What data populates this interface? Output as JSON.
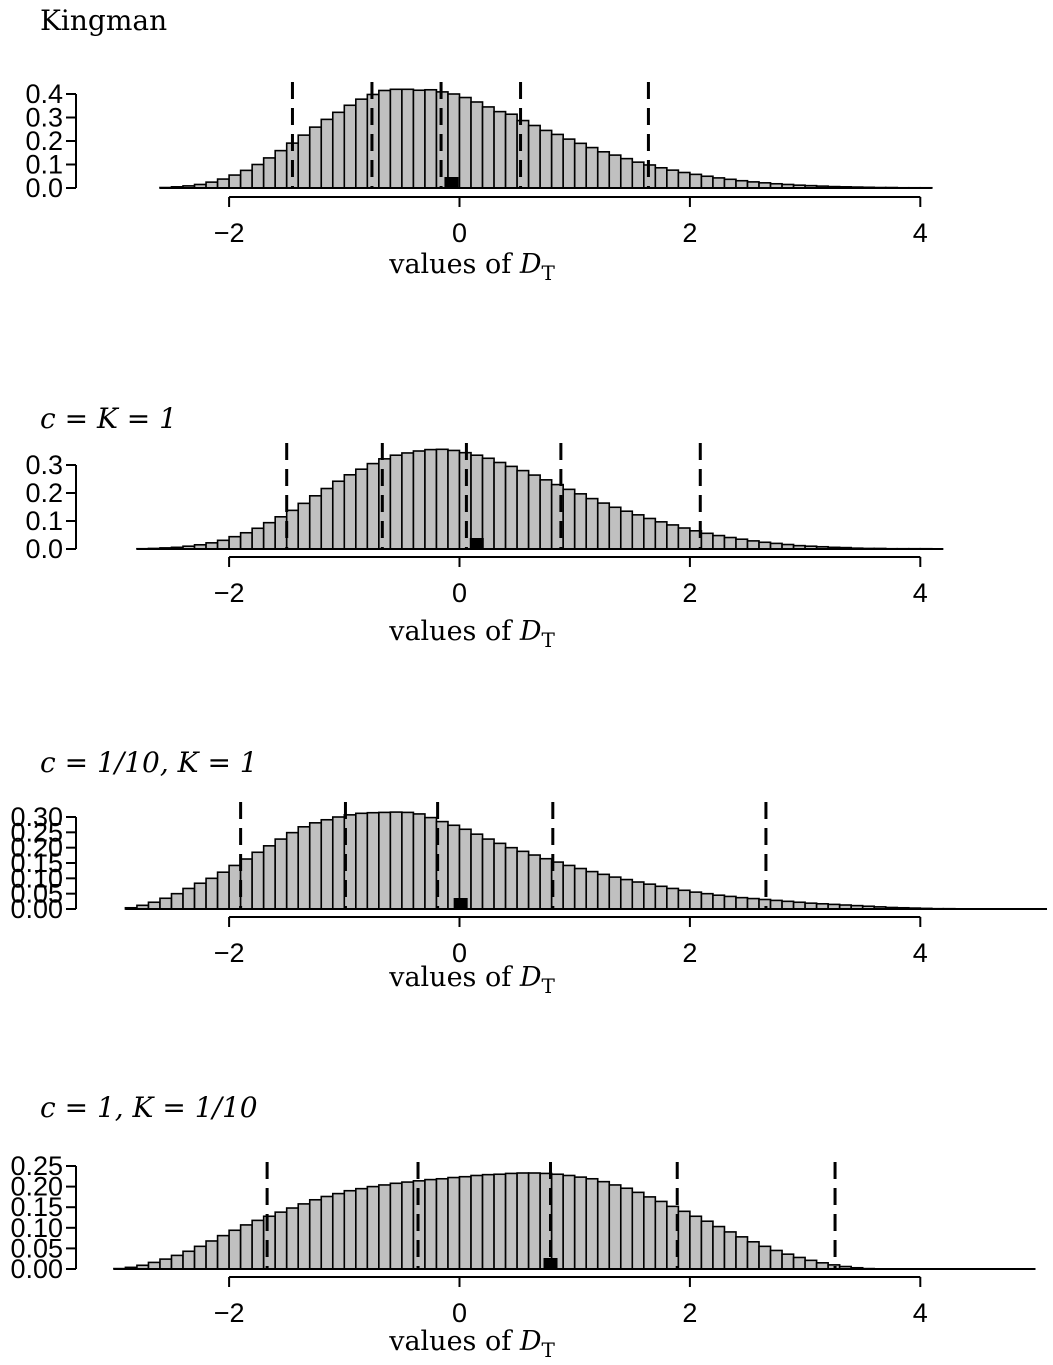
{
  "chart_data": [
    {
      "type": "bar",
      "title": "Kingman",
      "title_text": "Kingman",
      "title_math": "",
      "xlabel": "values of D_T",
      "xlabel_text": "values of ",
      "xlabel_var": "D",
      "xlabel_sub": "T",
      "xlim": [
        -2.75,
        4.31
      ],
      "ylim": [
        0,
        0.4
      ],
      "xticks": [
        -2,
        0,
        2,
        4
      ],
      "yticks": [
        "0.0",
        "0.1",
        "0.2",
        "0.3",
        "0.4"
      ],
      "bin_start": -2.6,
      "bin_width": 0.1,
      "values": [
        0.002,
        0.005,
        0.009,
        0.015,
        0.025,
        0.038,
        0.055,
        0.075,
        0.1,
        0.128,
        0.159,
        0.191,
        0.225,
        0.259,
        0.292,
        0.322,
        0.352,
        0.378,
        0.398,
        0.415,
        0.42,
        0.42,
        0.416,
        0.418,
        0.409,
        0.4,
        0.385,
        0.366,
        0.345,
        0.325,
        0.314,
        0.287,
        0.266,
        0.245,
        0.228,
        0.208,
        0.19,
        0.172,
        0.154,
        0.14,
        0.125,
        0.11,
        0.098,
        0.086,
        0.076,
        0.066,
        0.058,
        0.05,
        0.043,
        0.037,
        0.031,
        0.026,
        0.022,
        0.018,
        0.015,
        0.012,
        0.01,
        0.008,
        0.006,
        0.005,
        0.004,
        0.003,
        0.002,
        0.002,
        0.001,
        0.001,
        0.001
      ],
      "quantiles": [
        -1.45,
        -0.76,
        -0.16,
        0.53,
        1.64
      ],
      "marker_x": -0.07
    },
    {
      "type": "bar",
      "title": "c = K = 1",
      "title_text": "",
      "title_math": "c = K = 1",
      "xlabel": "values of D_T",
      "xlabel_text": "values of ",
      "xlabel_var": "D",
      "xlabel_sub": "T",
      "xlim": [
        -2.75,
        4.31
      ],
      "ylim": [
        0,
        0.3
      ],
      "xticks": [
        -2,
        0,
        2,
        4
      ],
      "yticks": [
        "0.0",
        "0.1",
        "0.2",
        "0.3"
      ],
      "bin_start": -2.8,
      "bin_width": 0.1,
      "values": [
        0.001,
        0.002,
        0.004,
        0.006,
        0.01,
        0.015,
        0.022,
        0.031,
        0.044,
        0.058,
        0.074,
        0.094,
        0.115,
        0.138,
        0.163,
        0.19,
        0.216,
        0.242,
        0.265,
        0.285,
        0.305,
        0.322,
        0.335,
        0.343,
        0.35,
        0.355,
        0.356,
        0.352,
        0.344,
        0.335,
        0.324,
        0.309,
        0.295,
        0.28,
        0.264,
        0.247,
        0.23,
        0.213,
        0.197,
        0.18,
        0.164,
        0.149,
        0.135,
        0.122,
        0.109,
        0.097,
        0.086,
        0.075,
        0.065,
        0.056,
        0.048,
        0.041,
        0.035,
        0.029,
        0.024,
        0.02,
        0.016,
        0.012,
        0.01,
        0.008,
        0.006,
        0.005,
        0.003,
        0.002,
        0.002,
        0.001,
        0.001,
        0.001,
        0.001,
        0.0
      ],
      "quantiles": [
        -1.5,
        -0.67,
        0.06,
        0.88,
        2.09
      ],
      "marker_x": 0.15
    },
    {
      "type": "bar",
      "title": "c = 1/10, K = 1",
      "title_text": "",
      "title_math": "c = 1/10, K = 1",
      "xlabel": "values of D_T",
      "xlabel_text": "values of ",
      "xlabel_var": "D",
      "xlabel_sub": "T",
      "xlim": [
        -2.75,
        4.31
      ],
      "ylim": [
        0,
        0.3
      ],
      "xticks": [
        -2,
        0,
        2,
        4
      ],
      "yticks": [
        "0.00",
        "0.05",
        "0.10",
        "0.15",
        "0.20",
        "0.25",
        "0.30"
      ],
      "bin_start": -2.9,
      "bin_width": 0.1,
      "values": [
        0.004,
        0.012,
        0.022,
        0.035,
        0.05,
        0.067,
        0.084,
        0.1,
        0.12,
        0.142,
        0.163,
        0.185,
        0.206,
        0.228,
        0.249,
        0.268,
        0.281,
        0.291,
        0.3,
        0.307,
        0.312,
        0.314,
        0.315,
        0.316,
        0.315,
        0.31,
        0.298,
        0.285,
        0.273,
        0.26,
        0.244,
        0.228,
        0.214,
        0.2,
        0.188,
        0.176,
        0.164,
        0.153,
        0.142,
        0.132,
        0.122,
        0.113,
        0.104,
        0.096,
        0.088,
        0.081,
        0.074,
        0.067,
        0.061,
        0.055,
        0.05,
        0.045,
        0.041,
        0.037,
        0.034,
        0.031,
        0.028,
        0.025,
        0.022,
        0.019,
        0.017,
        0.015,
        0.013,
        0.011,
        0.009,
        0.007,
        0.005,
        0.004,
        0.003,
        0.002,
        0.001,
        0.001,
        0.0,
        0.0,
        0.0,
        0.0,
        0.0,
        0.0,
        0.0,
        0.0
      ],
      "quantiles": [
        -1.9,
        -0.99,
        -0.19,
        0.81,
        2.66
      ],
      "marker_x": 0.01
    },
    {
      "type": "bar",
      "title": "c = 1,    K = 1/10",
      "title_text": "",
      "title_math": "c = 1,    K = 1/10",
      "xlabel": "values of D_T",
      "xlabel_text": "values of ",
      "xlabel_var": "D",
      "xlabel_sub": "T",
      "xlim": [
        -2.75,
        4.31
      ],
      "ylim": [
        0,
        0.25
      ],
      "xticks": [
        -2,
        0,
        2,
        4
      ],
      "yticks": [
        "0.00",
        "0.05",
        "0.10",
        "0.15",
        "0.20",
        "0.25"
      ],
      "bin_start": -3.0,
      "bin_width": 0.1,
      "values": [
        0.001,
        0.004,
        0.009,
        0.016,
        0.024,
        0.033,
        0.043,
        0.055,
        0.068,
        0.081,
        0.094,
        0.107,
        0.118,
        0.128,
        0.138,
        0.148,
        0.158,
        0.168,
        0.176,
        0.183,
        0.19,
        0.195,
        0.2,
        0.204,
        0.208,
        0.211,
        0.214,
        0.217,
        0.219,
        0.222,
        0.224,
        0.227,
        0.229,
        0.23,
        0.232,
        0.233,
        0.233,
        0.232,
        0.23,
        0.227,
        0.223,
        0.219,
        0.212,
        0.204,
        0.196,
        0.186,
        0.175,
        0.164,
        0.152,
        0.14,
        0.128,
        0.116,
        0.103,
        0.09,
        0.078,
        0.066,
        0.055,
        0.045,
        0.036,
        0.028,
        0.021,
        0.015,
        0.01,
        0.006,
        0.003,
        0.001,
        0.0,
        0.0,
        0.0,
        0.0,
        0.0,
        0.0,
        0.0,
        0.0,
        0.0,
        0.0,
        0.0,
        0.0,
        0.0,
        0.0
      ],
      "quantiles": [
        -1.67,
        -0.36,
        0.79,
        1.89,
        3.26
      ],
      "marker_x": 0.79
    }
  ]
}
